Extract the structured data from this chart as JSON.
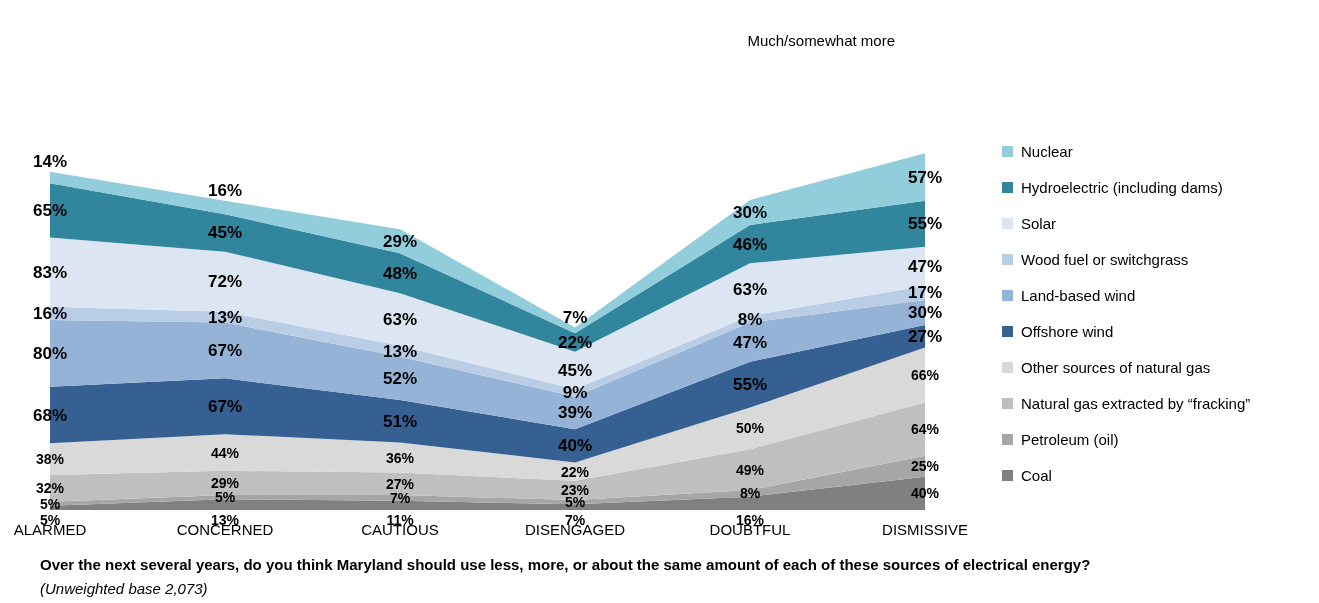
{
  "chart_data": {
    "type": "area",
    "stacked": true,
    "categories": [
      "ALARMED",
      "CONCERNED",
      "CAUTIOUS",
      "DISENGAGED",
      "DOUBTFUL",
      "DISMISSIVE"
    ],
    "series": [
      {
        "name": "Coal",
        "color": "#808080",
        "values": [
          5,
          13,
          11,
          7,
          16,
          40
        ],
        "value_labels": [
          "5%",
          "13%",
          "11%",
          "7%",
          "16%",
          "40%"
        ]
      },
      {
        "name": "Petroleum (oil)",
        "color": "#a6a6a6",
        "values": [
          5,
          5,
          7,
          5,
          8,
          25
        ],
        "value_labels": [
          "5%",
          "5%",
          "7%",
          "5%",
          "8%",
          "25%"
        ]
      },
      {
        "name": "Natural gas extracted by “fracking”",
        "color": "#bfbfbf",
        "values": [
          32,
          29,
          27,
          23,
          49,
          64
        ],
        "value_labels": [
          "32%",
          "29%",
          "27%",
          "23%",
          "49%",
          "64%"
        ]
      },
      {
        "name": "Other sources of natural gas",
        "color": "#d9d9d9",
        "values": [
          38,
          44,
          36,
          22,
          50,
          66
        ],
        "value_labels": [
          "38%",
          "44%",
          "36%",
          "22%",
          "50%",
          "66%"
        ]
      },
      {
        "name": "Offshore wind",
        "color": "#366092",
        "values": [
          68,
          67,
          51,
          40,
          55,
          27
        ],
        "value_labels": [
          "68%",
          "67%",
          "51%",
          "40%",
          "55%",
          "27%"
        ]
      },
      {
        "name": "Land-based wind",
        "color": "#95b3d7",
        "values": [
          80,
          67,
          52,
          39,
          47,
          30
        ],
        "value_labels": [
          "80%",
          "67%",
          "52%",
          "39%",
          "47%",
          "30%"
        ]
      },
      {
        "name": "Wood fuel or switchgrass",
        "color": "#b9cde5",
        "values": [
          16,
          13,
          13,
          9,
          8,
          17
        ],
        "value_labels": [
          "16%",
          "13%",
          "13%",
          "9%",
          "8%",
          "17%"
        ]
      },
      {
        "name": "Solar",
        "color": "#dce6f2",
        "values": [
          83,
          72,
          63,
          45,
          63,
          47
        ],
        "value_labels": [
          "83%",
          "72%",
          "63%",
          "45%",
          "63%",
          "47%"
        ]
      },
      {
        "name": "Hydroelectric (including dams)",
        "color": "#31859c",
        "values": [
          65,
          45,
          48,
          22,
          46,
          55
        ],
        "value_labels": [
          "65%",
          "45%",
          "48%",
          "22%",
          "46%",
          "55%"
        ]
      },
      {
        "name": "Nuclear",
        "color": "#92cddc",
        "values": [
          14,
          16,
          29,
          7,
          30,
          57
        ],
        "value_labels": [
          "14%",
          "16%",
          "29%",
          "7%",
          "30%",
          "57%"
        ]
      }
    ],
    "legend": "right",
    "annotations": [
      "Much/somewhat more",
      "Over the next several years, do you think Maryland should use less, more, or about the same amount of each of these sources of electrical energy?",
      "(Unweighted base 2,073)"
    ]
  }
}
